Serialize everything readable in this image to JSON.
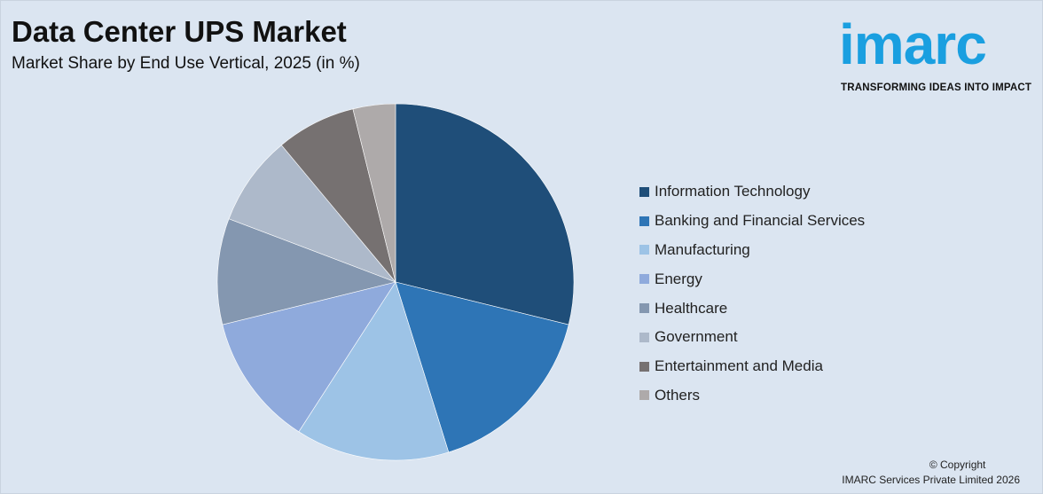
{
  "header": {
    "title": "Data Center UPS Market",
    "subtitle": "Market Share by End Use Vertical, 2025 (in %)"
  },
  "logo": {
    "word": "imarc",
    "tagline": "TRANSFORMING IDEAS INTO IMPACT",
    "color": "#1a9fe0"
  },
  "chart_data": {
    "type": "pie",
    "title": "Data Center UPS Market",
    "subtitle": "Market Share by End Use Vertical, 2025 (in %)",
    "legend_position": "right",
    "slices": [
      {
        "label": "Information Technology",
        "value": 30,
        "color": "#1f4e79"
      },
      {
        "label": "Banking and Financial Services",
        "value": 17,
        "color": "#2e75b6"
      },
      {
        "label": "Manufacturing",
        "value": 14.5,
        "color": "#9dc3e6"
      },
      {
        "label": "Energy",
        "value": 12.5,
        "color": "#8faadc"
      },
      {
        "label": "Healthcare",
        "value": 10,
        "color": "#8497b0"
      },
      {
        "label": "Government",
        "value": 8.5,
        "color": "#adb9ca"
      },
      {
        "label": "Entertainment and Media",
        "value": 7.5,
        "color": "#767171"
      },
      {
        "label": "Others",
        "value": 4,
        "color": "#aeaaaa"
      }
    ]
  },
  "footer": {
    "copyright_line1": "© Copyright",
    "copyright_line2": "IMARC Services Private Limited 2026"
  }
}
